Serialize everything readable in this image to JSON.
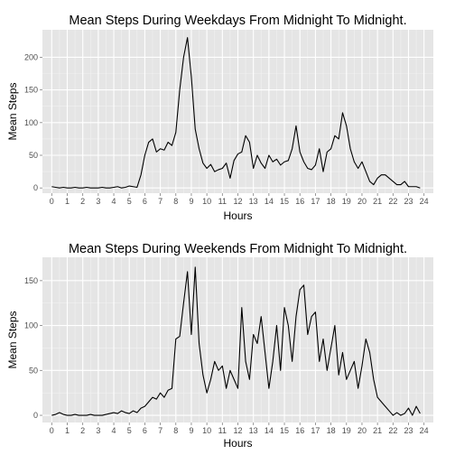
{
  "chart_data": [
    {
      "type": "line",
      "title": "Mean Steps During Weekdays From Midnight To Midnight.",
      "xlabel": "Hours",
      "ylabel": "Mean Steps",
      "xlim": [
        -0.6,
        24.6
      ],
      "ylim": [
        -8,
        242
      ],
      "x_ticks": [
        0,
        1,
        2,
        3,
        4,
        5,
        6,
        7,
        8,
        9,
        10,
        11,
        12,
        13,
        14,
        15,
        16,
        17,
        18,
        19,
        20,
        21,
        22,
        23,
        24
      ],
      "x_tick_labels": [
        "0",
        "1",
        "2",
        "3",
        "4",
        "5",
        "6",
        "7",
        "8",
        "9",
        "10",
        "11",
        "12",
        "13",
        "14",
        "15",
        "16",
        "17",
        "18",
        "19",
        "20",
        "21",
        "22",
        "23",
        "24"
      ],
      "y_ticks": [
        0,
        50,
        100,
        150,
        200
      ],
      "y_tick_labels": [
        "0",
        "50",
        "100",
        "150",
        "200"
      ],
      "grid": true,
      "series": [
        {
          "color": "#000000",
          "x": [
            0,
            0.25,
            0.5,
            0.75,
            1,
            1.25,
            1.5,
            1.75,
            2,
            2.25,
            2.5,
            2.75,
            3,
            3.25,
            3.5,
            3.75,
            4,
            4.25,
            4.5,
            4.75,
            5,
            5.25,
            5.5,
            5.75,
            6,
            6.25,
            6.5,
            6.75,
            7,
            7.25,
            7.5,
            7.75,
            8,
            8.25,
            8.5,
            8.75,
            9,
            9.25,
            9.5,
            9.75,
            10,
            10.25,
            10.5,
            10.75,
            11,
            11.25,
            11.5,
            11.75,
            12,
            12.25,
            12.5,
            12.75,
            13,
            13.25,
            13.5,
            13.75,
            14,
            14.25,
            14.5,
            14.75,
            15,
            15.25,
            15.5,
            15.75,
            16,
            16.25,
            16.5,
            16.75,
            17,
            17.25,
            17.5,
            17.75,
            18,
            18.25,
            18.5,
            18.75,
            19,
            19.25,
            19.5,
            19.75,
            20,
            20.25,
            20.5,
            20.75,
            21,
            21.25,
            21.5,
            21.75,
            22,
            22.25,
            22.5,
            22.75,
            23,
            23.25,
            23.5,
            23.75
          ],
          "y": [
            2,
            1,
            0,
            1,
            0,
            0,
            1,
            0,
            0,
            1,
            0,
            0,
            0,
            1,
            0,
            0,
            1,
            2,
            0,
            1,
            3,
            2,
            1,
            20,
            50,
            70,
            75,
            55,
            60,
            58,
            70,
            65,
            85,
            150,
            200,
            230,
            170,
            90,
            60,
            38,
            30,
            36,
            25,
            28,
            30,
            38,
            15,
            42,
            52,
            55,
            80,
            70,
            30,
            50,
            38,
            30,
            50,
            40,
            44,
            35,
            40,
            42,
            60,
            95,
            55,
            40,
            30,
            28,
            35,
            60,
            25,
            55,
            60,
            80,
            75,
            115,
            95,
            60,
            40,
            30,
            40,
            25,
            10,
            5,
            15,
            20,
            20,
            15,
            10,
            5,
            5,
            10,
            2,
            2,
            2,
            0
          ]
        }
      ]
    },
    {
      "type": "line",
      "title": "Mean Steps During Weekends From Midnight To Midnight.",
      "xlabel": "Hours",
      "ylabel": "Mean Steps",
      "xlim": [
        -0.6,
        24.6
      ],
      "ylim": [
        -8,
        176
      ],
      "x_ticks": [
        0,
        1,
        2,
        3,
        4,
        5,
        6,
        7,
        8,
        9,
        10,
        11,
        12,
        13,
        14,
        15,
        16,
        17,
        18,
        19,
        20,
        21,
        22,
        23,
        24
      ],
      "x_tick_labels": [
        "0",
        "1",
        "2",
        "3",
        "4",
        "5",
        "6",
        "7",
        "8",
        "9",
        "10",
        "11",
        "12",
        "13",
        "14",
        "15",
        "16",
        "17",
        "18",
        "19",
        "20",
        "21",
        "22",
        "23",
        "24"
      ],
      "y_ticks": [
        0,
        50,
        100,
        150
      ],
      "y_tick_labels": [
        "0",
        "50",
        "100",
        "150"
      ],
      "grid": true,
      "series": [
        {
          "color": "#000000",
          "x": [
            0,
            0.25,
            0.5,
            0.75,
            1,
            1.25,
            1.5,
            1.75,
            2,
            2.25,
            2.5,
            2.75,
            3,
            3.25,
            3.5,
            3.75,
            4,
            4.25,
            4.5,
            4.75,
            5,
            5.25,
            5.5,
            5.75,
            6,
            6.25,
            6.5,
            6.75,
            7,
            7.25,
            7.5,
            7.75,
            8,
            8.25,
            8.5,
            8.75,
            9,
            9.25,
            9.5,
            9.75,
            10,
            10.25,
            10.5,
            10.75,
            11,
            11.25,
            11.5,
            11.75,
            12,
            12.25,
            12.5,
            12.75,
            13,
            13.25,
            13.5,
            13.75,
            14,
            14.25,
            14.5,
            14.75,
            15,
            15.25,
            15.5,
            15.75,
            16,
            16.25,
            16.5,
            16.75,
            17,
            17.25,
            17.5,
            17.75,
            18,
            18.25,
            18.5,
            18.75,
            19,
            19.25,
            19.5,
            19.75,
            20,
            20.25,
            20.5,
            20.75,
            21,
            21.25,
            21.5,
            21.75,
            22,
            22.25,
            22.5,
            22.75,
            23,
            23.25,
            23.5,
            23.75
          ],
          "y": [
            0,
            1,
            3,
            1,
            0,
            0,
            1,
            0,
            0,
            0,
            1,
            0,
            0,
            0,
            1,
            2,
            3,
            2,
            5,
            3,
            2,
            5,
            3,
            8,
            10,
            15,
            20,
            18,
            25,
            20,
            28,
            30,
            85,
            88,
            125,
            160,
            90,
            165,
            80,
            45,
            25,
            40,
            60,
            50,
            55,
            30,
            50,
            40,
            30,
            120,
            60,
            40,
            90,
            80,
            110,
            70,
            30,
            60,
            100,
            50,
            120,
            100,
            60,
            110,
            140,
            145,
            90,
            110,
            115,
            60,
            85,
            50,
            75,
            100,
            45,
            70,
            40,
            50,
            60,
            30,
            55,
            85,
            70,
            40,
            20,
            15,
            10,
            5,
            0,
            3,
            0,
            2,
            8,
            0,
            10,
            2
          ]
        }
      ]
    }
  ]
}
